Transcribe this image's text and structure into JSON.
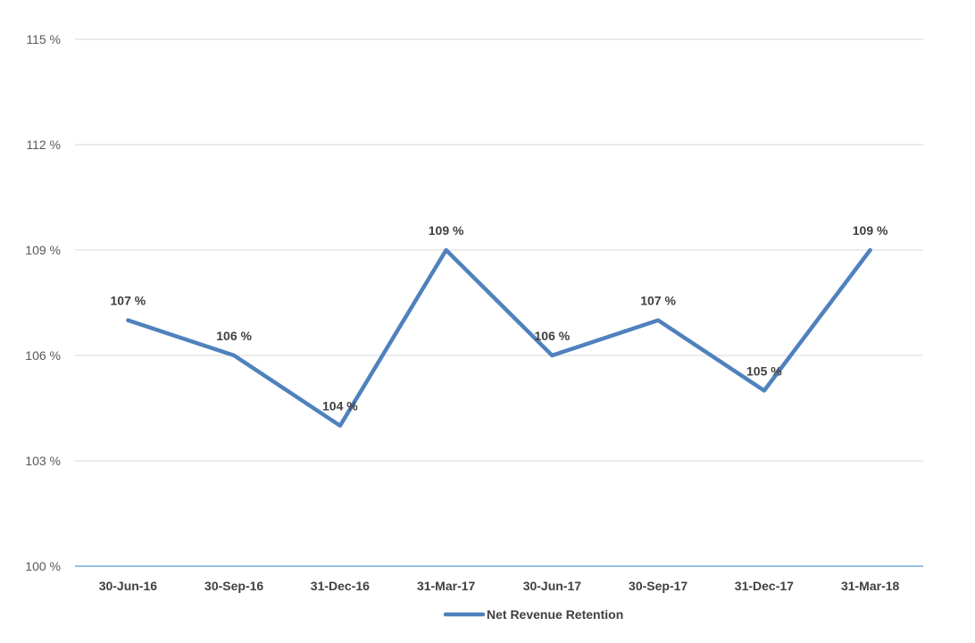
{
  "chart_data": {
    "type": "line",
    "categories": [
      "30-Jun-16",
      "30-Sep-16",
      "31-Dec-16",
      "31-Mar-17",
      "30-Jun-17",
      "30-Sep-17",
      "31-Dec-17",
      "31-Mar-18"
    ],
    "series": [
      {
        "name": "Net Revenue Retention",
        "values": [
          107,
          106,
          104,
          109,
          106,
          107,
          105,
          109
        ],
        "labels": [
          "107 %",
          "106 %",
          "104 %",
          "109 %",
          "106 %",
          "107 %",
          "105 %",
          "109 %"
        ],
        "color": "#4f81bd"
      }
    ],
    "yticks": [
      100,
      103,
      106,
      109,
      112,
      115
    ],
    "ytick_labels": [
      "100 %",
      "103 %",
      "106 %",
      "109 %",
      "112 %",
      "115 %"
    ],
    "ylim": [
      100,
      115
    ],
    "grid": true,
    "legend_position": "bottom"
  }
}
